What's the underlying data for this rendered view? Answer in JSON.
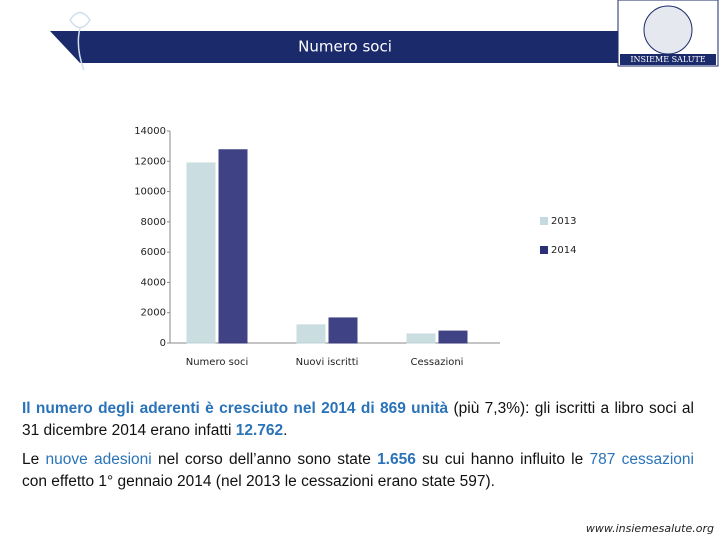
{
  "header": {
    "title": "Numero soci",
    "logo": "INSIEME SALUTE"
  },
  "chart_data": {
    "type": "bar",
    "categories": [
      "Numero soci",
      "Nuovi iscritti",
      "Cessazioni"
    ],
    "series": [
      {
        "name": "2013",
        "color": "#c5dade",
        "values": [
          11893,
          1200,
          597
        ]
      },
      {
        "name": "2014",
        "color": "#2b2f78",
        "values": [
          12762,
          1656,
          787
        ]
      }
    ],
    "ylim": [
      0,
      14000
    ],
    "yticks": [
      0,
      2000,
      4000,
      6000,
      8000,
      10000,
      12000,
      14000
    ],
    "grid": false,
    "legend": "right"
  },
  "paragraphs": [
    [
      "Il numero degli aderenti è cresciuto nel 2014 di 869 unità",
      " (più 7,3%): gli iscritti a libro soci al 31 dicembre 2014 erano infatti ",
      "12.762",
      "."
    ],
    [
      "Le ",
      "nuove adesioni",
      " nel corso dell’anno sono state ",
      "1.656",
      " su cui hanno influito le ",
      "787 cessazioni",
      " con effetto 1° gennaio 2014 (nel 2013 le cessazioni erano state 597)."
    ]
  ],
  "footer": "www.insiemesalute.org"
}
